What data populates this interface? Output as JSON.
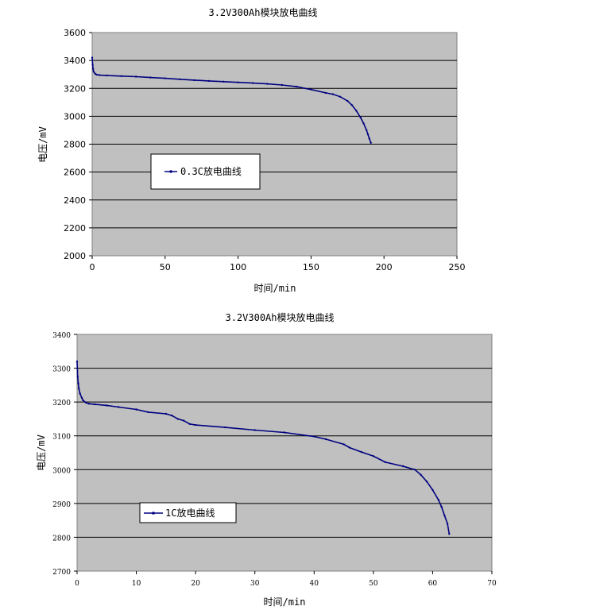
{
  "chart_data": [
    {
      "type": "line",
      "title": "3.2V300Ah模块放电曲线",
      "xlabel": "时间/min",
      "ylabel": "电压/mV",
      "xlim": [
        0,
        250
      ],
      "ylim": [
        2000,
        3600
      ],
      "xticks": [
        0,
        50,
        100,
        150,
        200,
        250
      ],
      "yticks": [
        2000,
        2200,
        2400,
        2600,
        2800,
        3000,
        3200,
        3400,
        3600
      ],
      "grid": "horizontal",
      "legend_placement": "center-left",
      "background": "#c0c0c0",
      "line_color": "#000080",
      "series": [
        {
          "name": "0.3C放电曲线",
          "x": [
            0,
            0.3,
            0.6,
            1,
            2,
            3,
            5,
            10,
            20,
            30,
            40,
            50,
            60,
            70,
            80,
            90,
            100,
            110,
            120,
            130,
            140,
            150,
            160,
            165,
            170,
            175,
            178,
            181,
            184,
            186,
            188,
            189,
            190,
            191
          ],
          "y": [
            3420,
            3370,
            3340,
            3320,
            3305,
            3298,
            3295,
            3292,
            3288,
            3284,
            3278,
            3272,
            3265,
            3259,
            3253,
            3248,
            3243,
            3238,
            3232,
            3224,
            3212,
            3192,
            3168,
            3158,
            3140,
            3110,
            3080,
            3040,
            2990,
            2950,
            2900,
            2870,
            2840,
            2810
          ]
        }
      ]
    },
    {
      "type": "line",
      "title": "3.2V300Ah模块放电曲线",
      "xlabel": "时间/min",
      "ylabel": "电压/mV",
      "xlim": [
        0,
        70
      ],
      "ylim": [
        2700,
        3400
      ],
      "xticks": [
        0,
        10,
        20,
        30,
        40,
        50,
        60,
        70
      ],
      "yticks": [
        2700,
        2800,
        2900,
        3000,
        3100,
        3200,
        3300,
        3400
      ],
      "grid": "horizontal",
      "legend_placement": "center-left",
      "background": "#c0c0c0",
      "line_color": "#000080",
      "series": [
        {
          "name": "1C放电曲线",
          "x": [
            0,
            0.1,
            0.2,
            0.3,
            0.5,
            0.8,
            1,
            1.5,
            2,
            3,
            5,
            7,
            10,
            12,
            15,
            16,
            17,
            18,
            19,
            20,
            25,
            30,
            35,
            40,
            42,
            45,
            46,
            48,
            50,
            52,
            55,
            57,
            58,
            59,
            60,
            61,
            61.5,
            62,
            62.5,
            62.8
          ],
          "y": [
            3320,
            3275,
            3255,
            3240,
            3225,
            3212,
            3205,
            3198,
            3195,
            3193,
            3190,
            3185,
            3178,
            3170,
            3165,
            3160,
            3150,
            3145,
            3135,
            3132,
            3125,
            3117,
            3110,
            3098,
            3090,
            3075,
            3065,
            3052,
            3040,
            3022,
            3010,
            3000,
            2985,
            2965,
            2940,
            2910,
            2890,
            2865,
            2840,
            2810
          ]
        }
      ]
    }
  ]
}
